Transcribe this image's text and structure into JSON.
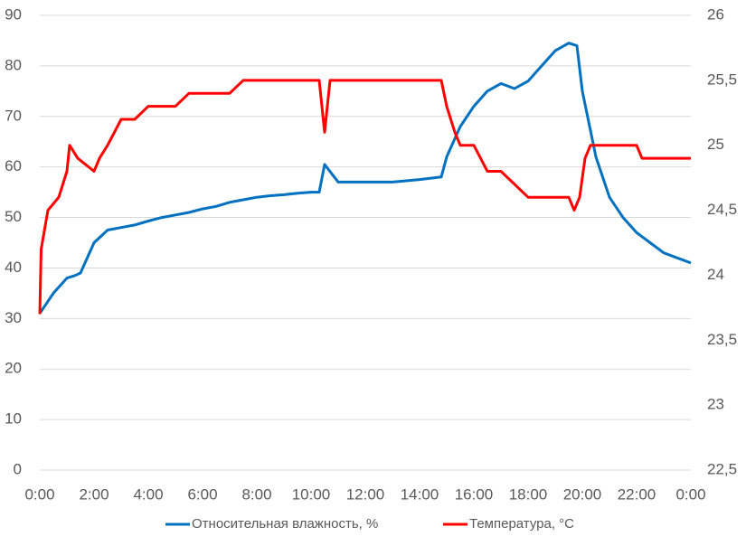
{
  "chart_data": {
    "type": "line",
    "xlim": [
      0,
      24
    ],
    "xticks": [
      {
        "value": 0,
        "label": "0:00"
      },
      {
        "value": 2,
        "label": "2:00"
      },
      {
        "value": 4,
        "label": "4:00"
      },
      {
        "value": 6,
        "label": "6:00"
      },
      {
        "value": 8,
        "label": "8:00"
      },
      {
        "value": 10,
        "label": "10:00"
      },
      {
        "value": 12,
        "label": "12:00"
      },
      {
        "value": 14,
        "label": "14:00"
      },
      {
        "value": 16,
        "label": "16:00"
      },
      {
        "value": 18,
        "label": "18:00"
      },
      {
        "value": 20,
        "label": "20:00"
      },
      {
        "value": 22,
        "label": "22:00"
      },
      {
        "value": 24,
        "label": "0:00"
      }
    ],
    "ylim": [
      0,
      90
    ],
    "yticks": [
      0,
      10,
      20,
      30,
      40,
      50,
      60,
      70,
      80,
      90
    ],
    "y2lim": [
      22.5,
      26
    ],
    "y2ticks": [
      {
        "value": 22.5,
        "label": "22,5"
      },
      23,
      {
        "value": 23.5,
        "label": "23,5"
      },
      24,
      {
        "value": 24.5,
        "label": "24,5"
      },
      25,
      {
        "value": 25.5,
        "label": "25,5"
      },
      26
    ],
    "grid": true,
    "legend": "bottom",
    "series": [
      {
        "name": "Относительная влажность, %",
        "color": "#0070c0",
        "x": [
          0,
          0.5,
          1,
          1.3,
          1.5,
          2,
          2.5,
          3,
          3.5,
          4,
          4.5,
          5,
          5.5,
          6,
          6.5,
          7,
          7.5,
          8,
          8.5,
          9,
          9.5,
          10,
          10.3,
          10.5,
          11,
          11.5,
          12,
          13,
          14,
          14.8,
          15,
          15.5,
          16,
          16.5,
          17,
          17.5,
          18,
          18.5,
          19,
          19.5,
          19.8,
          20,
          20.5,
          21,
          21.5,
          22,
          22.5,
          23,
          23.5,
          24
        ],
        "values": [
          31,
          35,
          38,
          38.5,
          39,
          45,
          47.5,
          48,
          48.5,
          49.3,
          50,
          50.5,
          51,
          51.7,
          52.2,
          53,
          53.5,
          54,
          54.3,
          54.5,
          54.8,
          55,
          55,
          60.5,
          57,
          57,
          57,
          57,
          57.5,
          58,
          62,
          68,
          72,
          75,
          76.5,
          75.5,
          77,
          80,
          83,
          84.5,
          84,
          75,
          62,
          54,
          50,
          47,
          45,
          43,
          42,
          41
        ]
      },
      {
        "name": "Температура, °C",
        "color": "#ff0000",
        "axis": "y2",
        "x": [
          0,
          0.05,
          0.3,
          0.7,
          1.0,
          1.1,
          1.4,
          2.0,
          2.2,
          2.5,
          3.0,
          3.5,
          4.0,
          5.0,
          5.5,
          6.0,
          7.0,
          7.5,
          8.0,
          10.3,
          10.5,
          10.7,
          13.0,
          14.8,
          15.0,
          15.3,
          15.5,
          16.0,
          16.5,
          17.0,
          17.5,
          18.0,
          19.5,
          19.7,
          19.9,
          20.1,
          20.3,
          21.0,
          22.0,
          22.2,
          24
        ],
        "values": [
          23.7,
          24.2,
          24.5,
          24.6,
          24.8,
          25.0,
          24.9,
          24.8,
          24.9,
          25.0,
          25.2,
          25.2,
          25.3,
          25.3,
          25.4,
          25.4,
          25.4,
          25.5,
          25.5,
          25.5,
          25.1,
          25.5,
          25.5,
          25.5,
          25.3,
          25.1,
          25.0,
          25.0,
          24.8,
          24.8,
          24.7,
          24.6,
          24.6,
          24.5,
          24.6,
          24.9,
          25.0,
          25.0,
          25.0,
          24.9,
          24.9
        ]
      }
    ]
  }
}
